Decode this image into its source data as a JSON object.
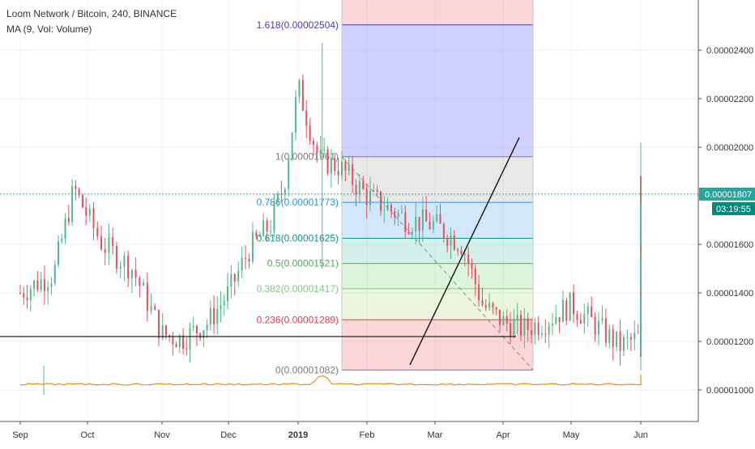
{
  "header": {
    "symbol_line": "Loom Network / Bitcoin, 240, BINANCE",
    "indicator_line": "MA (9, Vol: Volume)"
  },
  "colors": {
    "up_candle": "#53b987",
    "down_candle": "#eb4d5c",
    "volume_line": "#f08c1d",
    "price_dotted": "#26a69a",
    "price_badge": "#26a69a",
    "timer_badge": "#00897b"
  },
  "chart_data": {
    "type": "candlestick",
    "symbol": "Loom Network / Bitcoin",
    "interval": "240",
    "exchange": "BINANCE",
    "ylim": [
      9.2e-06,
      2.63e-05
    ],
    "y_ticks": [
      "0.00002400",
      "0.00002200",
      "0.00002000",
      "0.00001800",
      "0.00001600",
      "0.00001400",
      "0.00001200",
      "0.00001000"
    ],
    "x_ticks": [
      "Sep",
      "Oct",
      "Nov",
      "Dec",
      "2019",
      "Feb",
      "Mar",
      "Apr",
      "May",
      "Jun"
    ],
    "close_trend": [
      {
        "t": 0.0,
        "v": 1.4e-05
      },
      {
        "t": 0.5,
        "v": 1.48e-05
      },
      {
        "t": 0.8,
        "v": 1.83e-05
      },
      {
        "t": 1.2,
        "v": 1.6e-05
      },
      {
        "t": 1.6,
        "v": 1.5e-05
      },
      {
        "t": 2.0,
        "v": 1.23e-05
      },
      {
        "t": 2.3,
        "v": 1.21e-05
      },
      {
        "t": 2.7,
        "v": 1.28e-05
      },
      {
        "t": 3.0,
        "v": 1.4e-05
      },
      {
        "t": 3.3,
        "v": 1.58e-05
      },
      {
        "t": 3.6,
        "v": 1.68e-05
      },
      {
        "t": 3.8,
        "v": 1.85e-05
      },
      {
        "t": 4.0,
        "v": 2.25e-05
      },
      {
        "t": 4.15,
        "v": 2.1e-05
      },
      {
        "t": 4.3,
        "v": 1.95e-05
      },
      {
        "t": 4.6,
        "v": 1.92e-05
      },
      {
        "t": 5.0,
        "v": 1.8e-05
      },
      {
        "t": 5.3,
        "v": 1.75e-05
      },
      {
        "t": 5.6,
        "v": 1.7e-05
      },
      {
        "t": 6.0,
        "v": 1.68e-05
      },
      {
        "t": 6.4,
        "v": 1.6e-05
      },
      {
        "t": 6.7,
        "v": 1.35e-05
      },
      {
        "t": 7.0,
        "v": 1.28e-05
      },
      {
        "t": 7.3,
        "v": 1.25e-05
      },
      {
        "t": 7.6,
        "v": 1.28e-05
      },
      {
        "t": 8.0,
        "v": 1.35e-05
      },
      {
        "t": 8.3,
        "v": 1.28e-05
      },
      {
        "t": 8.7,
        "v": 1.18e-05
      },
      {
        "t": 9.0,
        "v": 1.22e-05
      },
      {
        "t": 9.3,
        "v": 1.28e-05
      },
      {
        "t": 9.6,
        "v": 1.21e-05
      },
      {
        "t": 10.0,
        "v": 1.2e-05
      },
      {
        "t": 10.4,
        "v": 1.23e-05
      },
      {
        "t": 10.8,
        "v": 1.24e-05
      },
      {
        "t": 11.2,
        "v": 1.28e-05
      },
      {
        "t": 11.5,
        "v": 1.23e-05
      },
      {
        "t": 11.8,
        "v": 1.21e-05
      },
      {
        "t": 12.2,
        "v": 1.19e-05
      },
      {
        "t": 12.6,
        "v": 1.21e-05
      },
      {
        "t": 12.9,
        "v": 1.23e-05
      },
      {
        "t": 13.1,
        "v": 1.25e-05
      },
      {
        "t": 13.4,
        "v": 1.45e-05
      },
      {
        "t": 13.6,
        "v": 1.58e-05
      },
      {
        "t": 13.8,
        "v": 1.45e-05
      },
      {
        "t": 14.0,
        "v": 1.5e-05
      },
      {
        "t": 14.2,
        "v": 1.6e-05
      },
      {
        "t": 14.5,
        "v": 1.8e-05
      },
      {
        "t": 14.7,
        "v": 1.65e-05
      },
      {
        "t": 14.9,
        "v": 1.72e-05
      },
      {
        "t": 15.1,
        "v": 1.78e-05
      },
      {
        "t": 15.25,
        "v": 1.9e-05
      },
      {
        "t": 15.4,
        "v": 1.82e-05
      }
    ],
    "fibonacci": {
      "levels": [
        {
          "ratio": "1.618",
          "price": "0.00002504",
          "label": "1.618(0.00002504)",
          "color": "#3f3fbf",
          "band": "rgba(120,123,255,0.35)"
        },
        {
          "ratio": "1",
          "price": "0.00001961",
          "label": "1(0.00001961)",
          "color": "#787b86",
          "band": "rgba(180,180,180,0.30)"
        },
        {
          "ratio": "0.786",
          "price": "0.00001773",
          "label": "0.786(0.00001773)",
          "color": "#2196f3",
          "band": "rgba(100,180,240,0.30)"
        },
        {
          "ratio": "0.618",
          "price": "0.00001625",
          "label": "0.618(0.00001625)",
          "color": "#089981",
          "band": "rgba(80,200,170,0.25)"
        },
        {
          "ratio": "0.5",
          "price": "0.00001521",
          "label": "0.5(0.00001521)",
          "color": "#4caf50",
          "band": "rgba(120,210,120,0.25)"
        },
        {
          "ratio": "0.382",
          "price": "0.00001417",
          "label": "0.382(0.00001417)",
          "color": "#81c784",
          "band": "rgba(180,220,120,0.25)"
        },
        {
          "ratio": "0.236",
          "price": "0.00001289",
          "label": "0.236(0.00001289)",
          "color": "#f23645",
          "band": "rgba(240,120,120,0.30)"
        },
        {
          "ratio": "0",
          "price": "0.00001082",
          "label": "0(0.00001082)",
          "color": "#787b86",
          "band": "rgba(240,120,120,0.30)"
        }
      ],
      "top_band_color": "rgba(240,120,120,0.30)"
    },
    "current_price": "0.00001807",
    "countdown": "03:19:55"
  }
}
